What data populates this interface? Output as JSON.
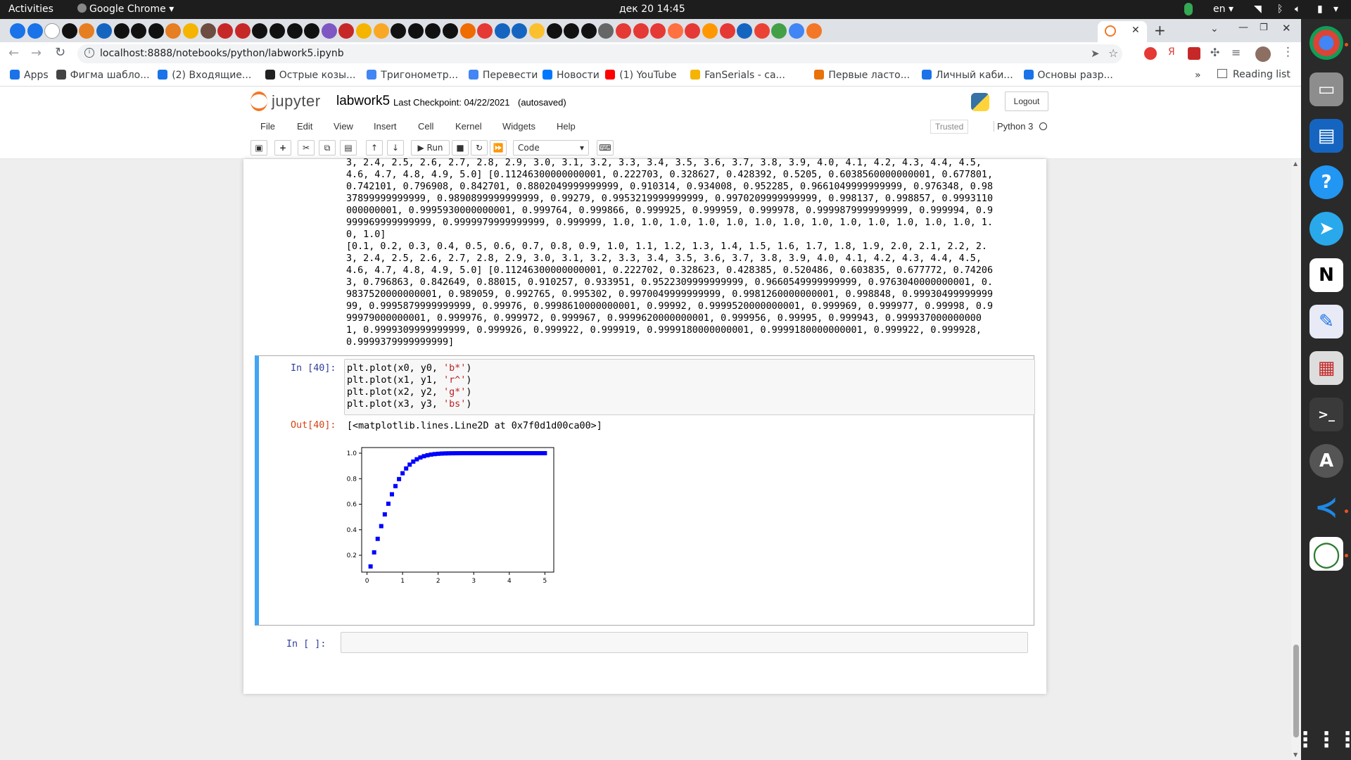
{
  "system_bar": {
    "activities": "Activities",
    "app_name": "Google Chrome",
    "datetime": "дек 20  14:45",
    "lang": "en"
  },
  "browser": {
    "url": "localhost:8888/notebooks/python/labwork5.ipynb",
    "bookmarks": [
      {
        "label": "Apps",
        "color": "#1a73e8"
      },
      {
        "label": "Фигма шабло...",
        "color": "#444444"
      },
      {
        "label": "(2) Входящие...",
        "color": "#1a73e8"
      },
      {
        "label": "Острые козы...",
        "color": "#222222"
      },
      {
        "label": "Тригонометр...",
        "color": "#4285f4"
      },
      {
        "label": "Перевести",
        "color": "#4285f4"
      },
      {
        "label": "Новости",
        "color": "#0077ff"
      },
      {
        "label": "(1) YouTube",
        "color": "#ff0000"
      },
      {
        "label": "FanSerials - са...",
        "color": "#f4b400"
      },
      {
        "label": "Первые ласто...",
        "color": "#e8710a"
      },
      {
        "label": "Личный каби...",
        "color": "#1a73e8"
      },
      {
        "label": "Основы разр...",
        "color": "#1a73e8"
      }
    ],
    "more": "»",
    "reading_list": "Reading list"
  },
  "jupyter": {
    "logo": "jupyter",
    "notebook_name": "labwork5",
    "checkpoint": "Last Checkpoint: 04/22/2021",
    "autosave": "(autosaved)",
    "logout": "Logout",
    "menus": [
      "File",
      "Edit",
      "View",
      "Insert",
      "Cell",
      "Kernel",
      "Widgets",
      "Help"
    ],
    "trusted": "Trusted",
    "kernel": "Python 3",
    "run_label": "Run",
    "cell_type": "Code"
  },
  "output_lines": [
    "3, 2.4, 2.5, 2.6, 2.7, 2.8, 2.9, 3.0, 3.1, 3.2, 3.3, 3.4, 3.5, 3.6, 3.7, 3.8, 3.9, 4.0, 4.1, 4.2, 4.3, 4.4, 4.5,",
    "4.6, 4.7, 4.8, 4.9, 5.0] [0.11246300000000001, 0.222703, 0.328627, 0.428392, 0.5205, 0.6038560000000001, 0.677801,",
    "0.742101, 0.796908, 0.842701, 0.8802049999999999, 0.910314, 0.934008, 0.952285, 0.9661049999999999, 0.976348, 0.98",
    "37899999999999, 0.9890899999999999, 0.99279, 0.9953219999999999, 0.9970209999999999, 0.998137, 0.998857, 0.9993110",
    "000000001, 0.9995930000000001, 0.999764, 0.999866, 0.999925, 0.999959, 0.999978, 0.9999879999999999, 0.999994, 0.9",
    "999969999999999, 0.9999979999999999, 0.999999, 1.0, 1.0, 1.0, 1.0, 1.0, 1.0, 1.0, 1.0, 1.0, 1.0, 1.0, 1.0, 1.0, 1.",
    "0, 1.0]",
    "[0.1, 0.2, 0.3, 0.4, 0.5, 0.6, 0.7, 0.8, 0.9, 1.0, 1.1, 1.2, 1.3, 1.4, 1.5, 1.6, 1.7, 1.8, 1.9, 2.0, 2.1, 2.2, 2.",
    "3, 2.4, 2.5, 2.6, 2.7, 2.8, 2.9, 3.0, 3.1, 3.2, 3.3, 3.4, 3.5, 3.6, 3.7, 3.8, 3.9, 4.0, 4.1, 4.2, 4.3, 4.4, 4.5,",
    "4.6, 4.7, 4.8, 4.9, 5.0] [0.11246300000000001, 0.222702, 0.328623, 0.428385, 0.520486, 0.603835, 0.677772, 0.74206",
    "3, 0.796863, 0.842649, 0.88015, 0.910257, 0.933951, 0.9522309999999999, 0.9660549999999999, 0.9763040000000001, 0.",
    "9837520000000001, 0.989059, 0.992765, 0.995302, 0.9970049999999999, 0.9981260000000001, 0.998848, 0.99930499999999",
    "99, 0.9995879999999999, 0.99976, 0.9998610000000001, 0.99992, 0.9999520000000001, 0.999969, 0.999977, 0.99998, 0.9",
    "99979000000001, 0.999976, 0.999972, 0.999967, 0.9999620000000001, 0.999956, 0.99995, 0.999943, 0.999937000000000",
    "1, 0.9999309999999999, 0.999926, 0.999922, 0.999919, 0.9999180000000001, 0.9999180000000001, 0.999922, 0.999928,",
    "0.9999379999999999]"
  ],
  "cell40": {
    "in_prompt": "In [40]:",
    "code": [
      {
        "pre": "plt.plot(x0, y0, ",
        "str": "'b*'",
        "post": ")"
      },
      {
        "pre": "plt.plot(x1, y1, ",
        "str": "'r^'",
        "post": ")"
      },
      {
        "pre": "plt.plot(x2, y2, ",
        "str": "'g*'",
        "post": ")"
      },
      {
        "pre": "plt.plot(x3, y3, ",
        "str": "'bs'",
        "post": ")"
      }
    ],
    "out_prompt": "Out[40]:",
    "out_text": "[<matplotlib.lines.Line2D at 0x7f0d1d00ca00>]"
  },
  "empty_cell": {
    "in_prompt": "In [ ]:"
  },
  "chart_data": {
    "type": "scatter",
    "marker": "square",
    "color": "#0000ff",
    "x": [
      0.1,
      0.2,
      0.3,
      0.4,
      0.5,
      0.6,
      0.7,
      0.8,
      0.9,
      1.0,
      1.1,
      1.2,
      1.3,
      1.4,
      1.5,
      1.6,
      1.7,
      1.8,
      1.9,
      2.0,
      2.1,
      2.2,
      2.3,
      2.4,
      2.5,
      2.6,
      2.7,
      2.8,
      2.9,
      3.0,
      3.1,
      3.2,
      3.3,
      3.4,
      3.5,
      3.6,
      3.7,
      3.8,
      3.9,
      4.0,
      4.1,
      4.2,
      4.3,
      4.4,
      4.5,
      4.6,
      4.7,
      4.8,
      4.9,
      5.0
    ],
    "y": [
      0.112463,
      0.222702,
      0.328623,
      0.428385,
      0.520486,
      0.603835,
      0.677772,
      0.742063,
      0.796863,
      0.842649,
      0.88015,
      0.910257,
      0.933951,
      0.952231,
      0.966055,
      0.976304,
      0.983752,
      0.989059,
      0.992765,
      0.995302,
      0.997005,
      0.998126,
      0.998848,
      0.999305,
      0.999588,
      0.99976,
      0.999861,
      0.99992,
      0.999952,
      0.999969,
      0.999977,
      0.99998,
      0.999979,
      0.999976,
      0.999972,
      0.999967,
      0.999962,
      0.999956,
      0.99995,
      0.999943,
      0.999937,
      0.999931,
      0.999926,
      0.999922,
      0.999919,
      0.999918,
      0.999918,
      0.999922,
      0.999928,
      0.999938
    ],
    "xlim": [
      -0.15,
      5.25
    ],
    "ylim": [
      0.068,
      1.044
    ],
    "xticks": [
      "0",
      "1",
      "2",
      "3",
      "4",
      "5"
    ],
    "yticks": [
      "0.2",
      "0.4",
      "0.6",
      "0.8",
      "1.0"
    ]
  }
}
